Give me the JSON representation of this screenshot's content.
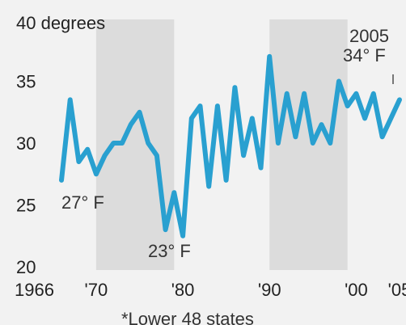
{
  "chart_data": {
    "type": "line",
    "title": "",
    "top_label": "40 degrees",
    "xlabel": "",
    "ylabel": "",
    "x_ticks": [
      "1966",
      "'70",
      "'80",
      "'90",
      "'00",
      "'05"
    ],
    "y_ticks": [
      "35",
      "30",
      "25",
      "20"
    ],
    "ylim": [
      20,
      40
    ],
    "xlim": [
      1966,
      2005
    ],
    "shaded_periods": [
      [
        1970,
        1979
      ],
      [
        1990,
        1999
      ]
    ],
    "series": [
      {
        "name": "",
        "color": "#29a0d0",
        "x": [
          1966,
          1967,
          1968,
          1969,
          1970,
          1971,
          1972,
          1973,
          1974,
          1975,
          1976,
          1977,
          1978,
          1979,
          1980,
          1981,
          1982,
          1983,
          1984,
          1985,
          1986,
          1987,
          1988,
          1989,
          1990,
          1991,
          1992,
          1993,
          1994,
          1995,
          1996,
          1997,
          1998,
          1999,
          2000,
          2001,
          2002,
          2003,
          2004,
          2005
        ],
        "y": [
          27,
          33.5,
          28.5,
          29.5,
          27.5,
          29,
          30,
          30,
          31.5,
          32.5,
          30,
          29,
          23,
          26,
          22.5,
          32,
          33,
          26.5,
          33,
          27,
          34.5,
          29,
          32,
          28,
          37,
          30,
          34,
          30.5,
          34,
          30,
          31.5,
          30,
          35,
          33,
          34,
          32,
          34,
          30.5,
          32,
          33.5
        ]
      }
    ],
    "annotations": [
      "27° F",
      "23° F",
      "2005",
      "34° F"
    ],
    "footnote": "*Lower 48 states"
  }
}
